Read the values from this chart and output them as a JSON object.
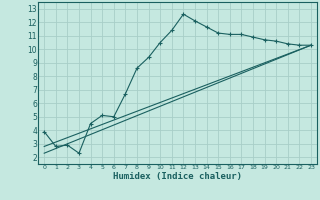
{
  "xlabel": "Humidex (Indice chaleur)",
  "xlim": [
    -0.5,
    23.5
  ],
  "ylim": [
    1.5,
    13.5
  ],
  "xticks": [
    0,
    1,
    2,
    3,
    4,
    5,
    6,
    7,
    8,
    9,
    10,
    11,
    12,
    13,
    14,
    15,
    16,
    17,
    18,
    19,
    20,
    21,
    22,
    23
  ],
  "yticks": [
    2,
    3,
    4,
    5,
    6,
    7,
    8,
    9,
    10,
    11,
    12,
    13
  ],
  "bg_color": "#c5e8e0",
  "grid_color": "#a8cec8",
  "line_color": "#1a6060",
  "series1_x": [
    0,
    1,
    2,
    3,
    4,
    5,
    6,
    7,
    8,
    9,
    10,
    11,
    12,
    13,
    14,
    15,
    16,
    17,
    18,
    19,
    20,
    21,
    22,
    23
  ],
  "series1_y": [
    3.9,
    2.8,
    2.9,
    2.3,
    4.5,
    5.1,
    5.0,
    6.7,
    8.6,
    9.4,
    10.5,
    11.4,
    12.6,
    12.1,
    11.65,
    11.2,
    11.1,
    11.1,
    10.9,
    10.7,
    10.6,
    10.4,
    10.3,
    10.3
  ],
  "series2_x": [
    0,
    23
  ],
  "series2_y": [
    2.8,
    10.3
  ],
  "series3_x": [
    0,
    23
  ],
  "series3_y": [
    2.3,
    10.3
  ]
}
